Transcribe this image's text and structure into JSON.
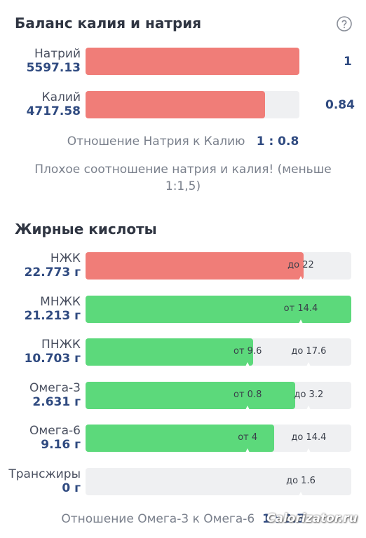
{
  "balance": {
    "title": "Баланс калия и натрия",
    "help_icon": "question-circle-icon",
    "rows": [
      {
        "name": "Натрий",
        "value": "5597.13",
        "ratio": "1",
        "fill_fraction": 1.0
      },
      {
        "name": "Калий",
        "value": "4717.58",
        "ratio": "0.84",
        "fill_fraction": 0.84
      }
    ],
    "ratio_label": "Отношение Натрия к Калию",
    "ratio_value": "1 : 0.8",
    "warning": "Плохое соотношение натрия и калия! (меньше 1:1,5)"
  },
  "fatty": {
    "title": "Жирные кислоты",
    "rows": [
      {
        "name": "НЖК",
        "value": "22.773 г",
        "fill_fraction": 0.82,
        "color": "#f07d78",
        "markers": [
          {
            "text": "до 22",
            "fraction": 0.81
          }
        ]
      },
      {
        "name": "МНЖК",
        "value": "21.213 г",
        "fill_fraction": 1.0,
        "color": "#5cd97b",
        "markers": [
          {
            "text": "от 14.4",
            "fraction": 0.81
          }
        ]
      },
      {
        "name": "ПНЖК",
        "value": "10.703 г",
        "fill_fraction": 0.63,
        "color": "#5cd97b",
        "markers": [
          {
            "text": "от 9.6",
            "fraction": 0.61
          },
          {
            "text": "до 17.6",
            "fraction": 0.84
          }
        ]
      },
      {
        "name": "Омега-3",
        "value": "2.631 г",
        "fill_fraction": 0.79,
        "color": "#5cd97b",
        "markers": [
          {
            "text": "от 0.8",
            "fraction": 0.61
          },
          {
            "text": "до 3.2",
            "fraction": 0.84
          }
        ]
      },
      {
        "name": "Омега-6",
        "value": "9.16 г",
        "fill_fraction": 0.71,
        "color": "#5cd97b",
        "markers": [
          {
            "text": "от 4",
            "fraction": 0.61
          },
          {
            "text": "до 14.4",
            "fraction": 0.84
          }
        ]
      },
      {
        "name": "Трансжиры",
        "value": "0 г",
        "fill_fraction": 0.0,
        "color": "#5cd97b",
        "markers": [
          {
            "text": "до 1.6",
            "fraction": 0.81
          }
        ]
      }
    ],
    "ratio_label": "Отношение Омега-3 к Омега-6",
    "ratio_value": "1 : 3.5"
  },
  "watermark": "Calorizator.ru"
}
